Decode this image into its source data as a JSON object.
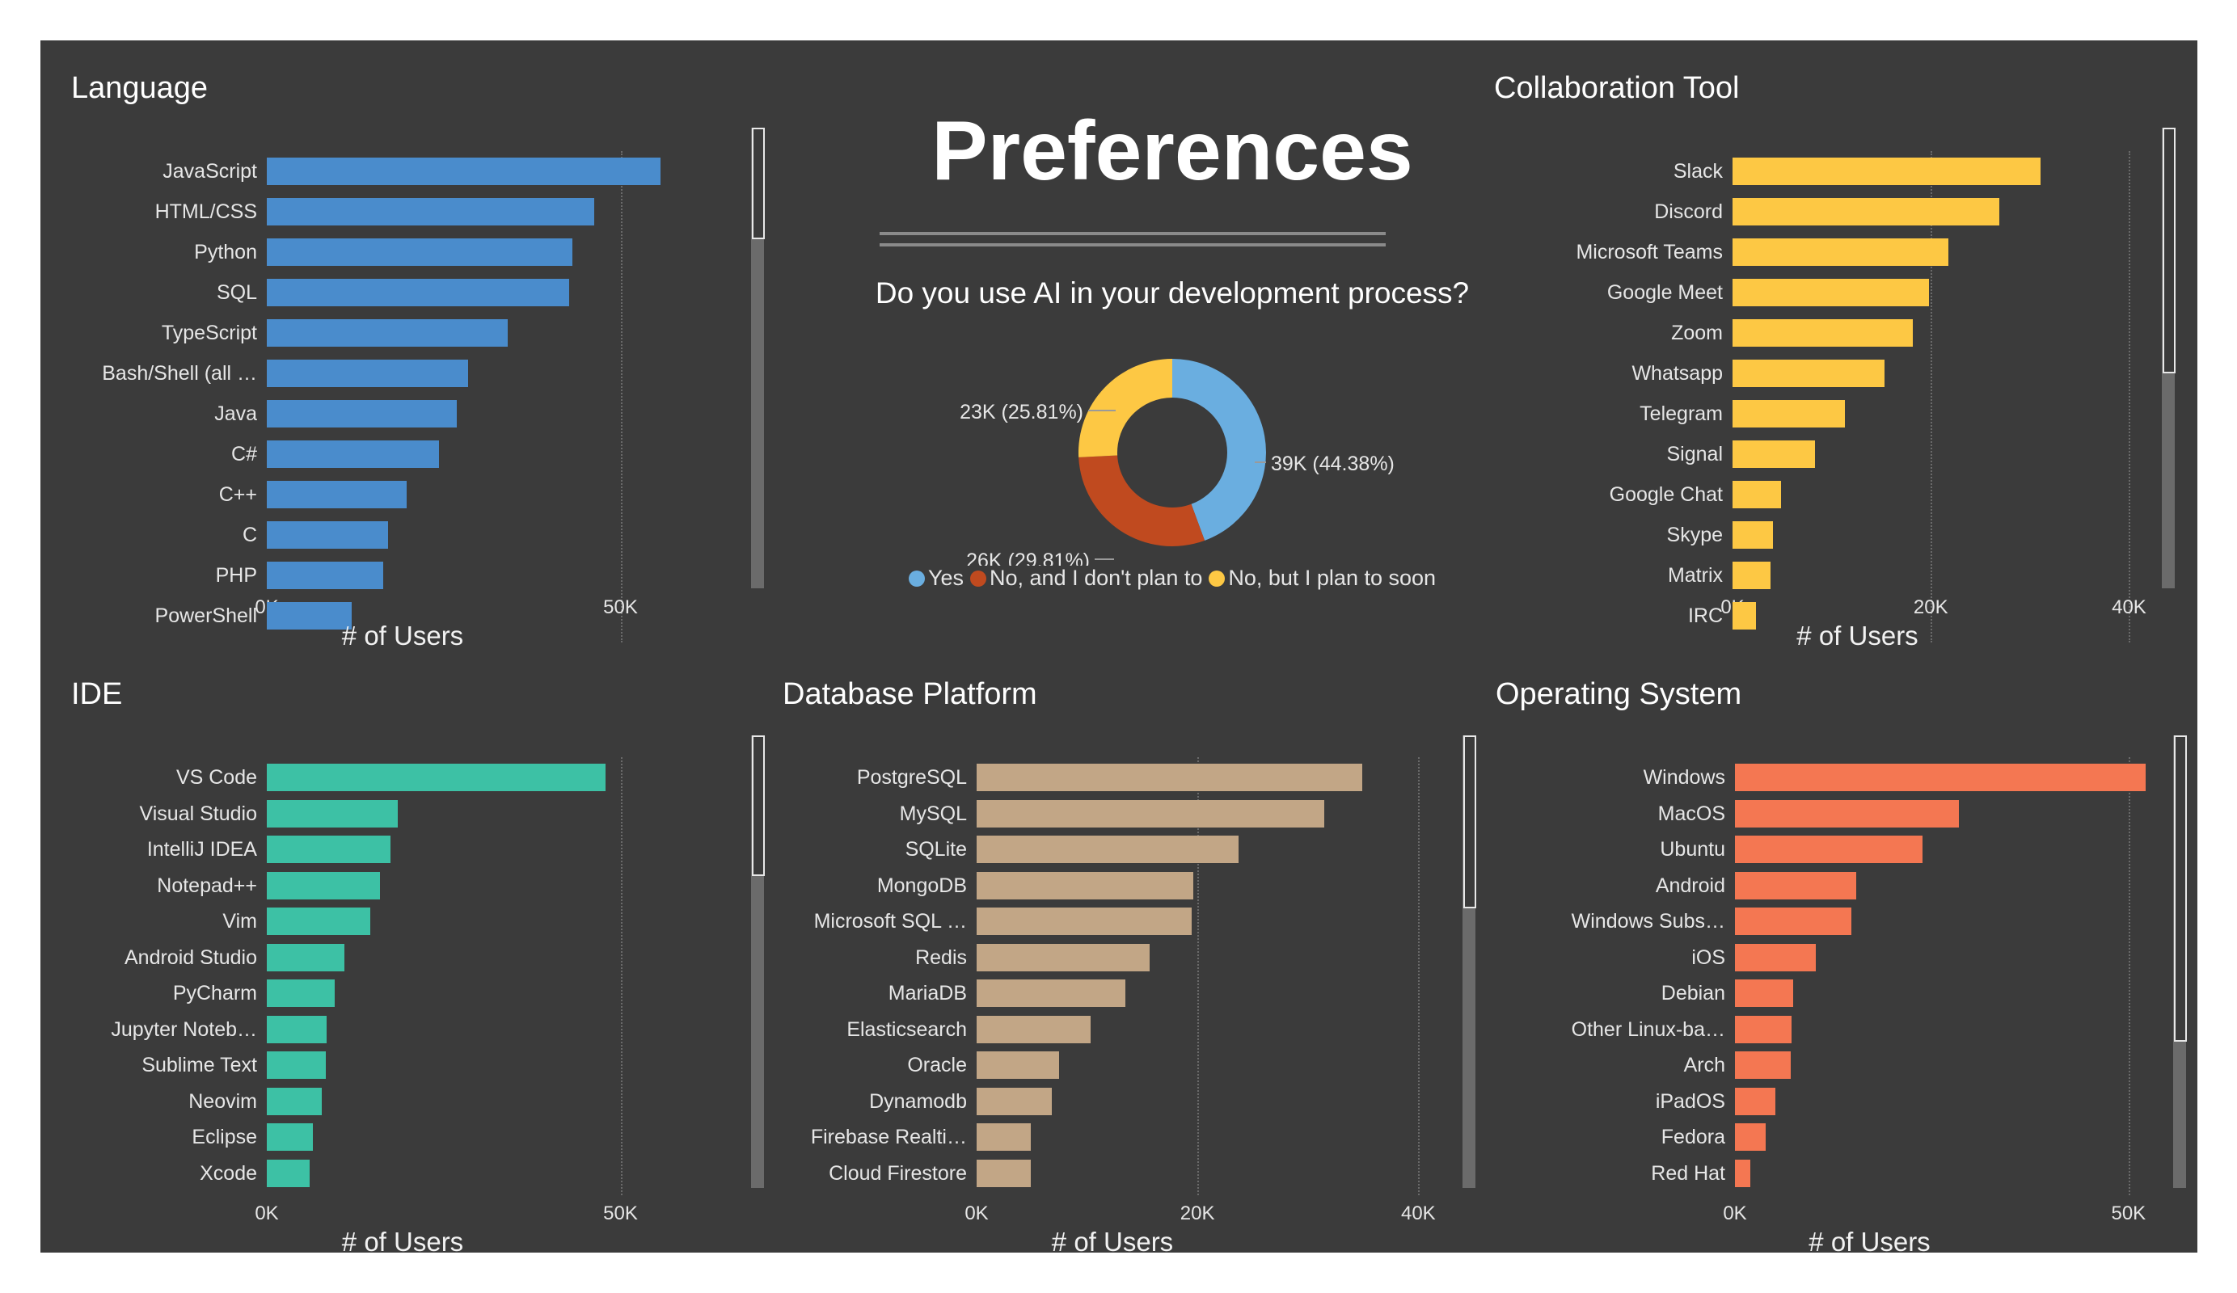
{
  "header": {
    "title": "Preferences"
  },
  "chart_data": [
    {
      "id": "language",
      "type": "bar",
      "orientation": "horizontal",
      "title": "Language",
      "xlabel": "# of Users",
      "color": "#4a8ccc",
      "xlim": [
        0,
        64000
      ],
      "ticks": [
        0,
        50000
      ],
      "tick_labels": [
        "0K",
        "50K"
      ],
      "categories": [
        "JavaScript",
        "HTML/CSS",
        "Python",
        "SQL",
        "TypeScript",
        "Bash/Shell (all …",
        "Java",
        "C#",
        "C++",
        "C",
        "PHP",
        "PowerShell"
      ],
      "values": [
        55700,
        46300,
        43200,
        42700,
        34100,
        28400,
        26800,
        24300,
        19800,
        17100,
        16400,
        12000
      ]
    },
    {
      "id": "collaboration",
      "type": "bar",
      "orientation": "horizontal",
      "title": "Collaboration Tool",
      "xlabel": "# of Users",
      "color": "#fdc844",
      "xlim": [
        0,
        42000
      ],
      "ticks": [
        0,
        20000,
        40000
      ],
      "tick_labels": [
        "0K",
        "20K",
        "40K"
      ],
      "categories": [
        "Slack",
        "Discord",
        "Microsoft Teams",
        "Google Meet",
        "Zoom",
        "Whatsapp",
        "Telegram",
        "Signal",
        "Google Chat",
        "Skype",
        "Matrix",
        "IRC"
      ],
      "values": [
        31100,
        26900,
        21800,
        19800,
        18200,
        15300,
        11300,
        8300,
        4900,
        4100,
        3800,
        2400
      ]
    },
    {
      "id": "ide",
      "type": "bar",
      "orientation": "horizontal",
      "title": "IDE",
      "xlabel": "# of Users",
      "color": "#3dc1a5",
      "xlim": [
        0,
        64000
      ],
      "ticks": [
        0,
        50000
      ],
      "tick_labels": [
        "0K",
        "50K"
      ],
      "categories": [
        "VS Code",
        "Visual Studio",
        "IntelliJ IDEA",
        "Notepad++",
        "Vim",
        "Android Studio",
        "PyCharm",
        "Jupyter Noteb…",
        "Sublime Text",
        "Neovim",
        "Eclipse",
        "Xcode"
      ],
      "values": [
        47900,
        18500,
        17500,
        16000,
        14600,
        11000,
        9600,
        8400,
        8300,
        7800,
        6500,
        6100
      ]
    },
    {
      "id": "database",
      "type": "bar",
      "orientation": "horizontal",
      "title": "Database Platform",
      "xlabel": "# of Users",
      "color": "#c2a686",
      "xlim": [
        0,
        41000
      ],
      "ticks": [
        0,
        20000,
        40000
      ],
      "tick_labels": [
        "0K",
        "20K",
        "40K"
      ],
      "categories": [
        "PostgreSQL",
        "MySQL",
        "SQLite",
        "MongoDB",
        "Microsoft SQL …",
        "Redis",
        "MariaDB",
        "Elasticsearch",
        "Oracle",
        "Dynamodb",
        "Firebase Realti…",
        "Cloud Firestore"
      ],
      "values": [
        34900,
        31500,
        23700,
        19600,
        19500,
        15700,
        13500,
        10300,
        7500,
        6800,
        4900,
        4900
      ]
    },
    {
      "id": "os",
      "type": "bar",
      "orientation": "horizontal",
      "title": "Operating System",
      "xlabel": "# of Users",
      "color": "#f47752",
      "xlim": [
        0,
        57000
      ],
      "ticks": [
        0,
        50000
      ],
      "tick_labels": [
        "0K",
        "50K"
      ],
      "categories": [
        "Windows",
        "MacOS",
        "Ubuntu",
        "Android",
        "Windows Subs…",
        "iOS",
        "Debian",
        "Other Linux-ba…",
        "Arch",
        "iPadOS",
        "Fedora",
        "Red Hat"
      ],
      "values": [
        52200,
        28400,
        23800,
        15400,
        14800,
        10300,
        7400,
        7200,
        7100,
        5100,
        3900,
        2000
      ]
    },
    {
      "id": "ai_usage",
      "type": "pie",
      "style": "donut",
      "title": "Do you use AI in your development process?",
      "slices": [
        {
          "name": "Yes",
          "value": 39000,
          "percent": 44.38,
          "label": "39K (44.38%)",
          "color": "#6aaee0"
        },
        {
          "name": "No, and I don't plan to",
          "value": 26000,
          "percent": 29.81,
          "label": "26K (29.81%)",
          "color": "#c04a1f"
        },
        {
          "name": "No, but I plan to soon",
          "value": 23000,
          "percent": 25.81,
          "label": "23K (25.81%)",
          "color": "#fdc844"
        }
      ]
    }
  ]
}
